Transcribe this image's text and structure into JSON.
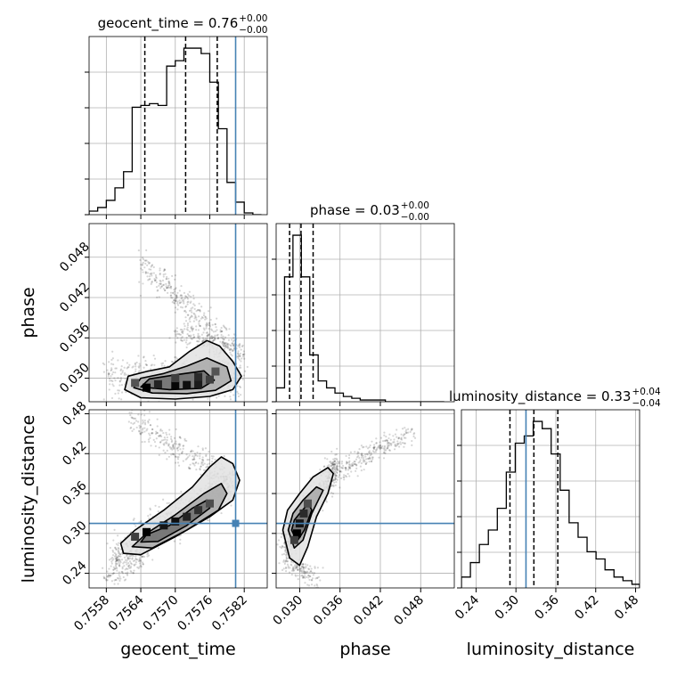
{
  "chart_data": {
    "type": "corner",
    "grid": true,
    "truth_color": "#4682b4",
    "parameters": [
      {
        "name": "geocent_time",
        "label": "geocent_time",
        "range": [
          0.7555,
          0.7586
        ],
        "ticks": [
          0.7558,
          0.7564,
          0.757,
          0.7576,
          0.7582
        ],
        "tick_labels": [
          "0.7558",
          "0.7564",
          "0.7570",
          "0.7576",
          "0.7582"
        ],
        "truth": 0.75805,
        "quantiles": [
          0.75647,
          0.75718,
          0.75773
        ],
        "title": {
          "main": "geocent_time = 0.76",
          "plus": "+0.00",
          "minus": "−0.00"
        },
        "histogram": {
          "edges": [
            0.7555,
            0.75565,
            0.7558,
            0.75595,
            0.7561,
            0.75625,
            0.7564,
            0.75655,
            0.7567,
            0.75685,
            0.757,
            0.75715,
            0.7573,
            0.75745,
            0.7576,
            0.75775,
            0.7579,
            0.75805,
            0.7582,
            0.75835,
            0.7585
          ],
          "counts": [
            2,
            4,
            8,
            15,
            24,
            60,
            61,
            62,
            61,
            83,
            86,
            93,
            93,
            90,
            74,
            48,
            18,
            7,
            1,
            0
          ]
        }
      },
      {
        "name": "phase",
        "label": "phase",
        "range": [
          0.0265,
          0.053
        ],
        "ticks": [
          0.03,
          0.036,
          0.042,
          0.048
        ],
        "tick_labels": [
          "0.030",
          "0.036",
          "0.042",
          "0.048"
        ],
        "truth": null,
        "quantiles": [
          0.0285,
          0.0302,
          0.032
        ],
        "title": {
          "main": "phase = 0.03",
          "plus": "+0.00",
          "minus": "−0.00"
        },
        "histogram": {
          "edges": [
            0.0265,
            0.02775,
            0.029,
            0.03025,
            0.0315,
            0.03275,
            0.034,
            0.03525,
            0.0365,
            0.03775,
            0.039,
            0.04025,
            0.0415,
            0.04275,
            0.044,
            0.04525,
            0.0465,
            0.04775,
            0.049,
            0.05025,
            0.0515
          ],
          "counts": [
            8,
            72,
            96,
            72,
            27,
            12,
            8,
            5,
            3,
            2,
            1,
            1,
            1,
            0,
            0,
            0,
            0,
            0,
            0,
            0
          ]
        }
      },
      {
        "name": "luminosity_distance",
        "label": "luminosity_distance",
        "range": [
          0.218,
          0.486
        ],
        "ticks": [
          0.24,
          0.3,
          0.36,
          0.42,
          0.48
        ],
        "tick_labels": [
          "0.24",
          "0.30",
          "0.36",
          "0.42",
          "0.48"
        ],
        "truth": 0.3151,
        "quantiles": [
          0.291,
          0.327,
          0.363
        ],
        "title": {
          "main": "luminosity_distance = 0.33",
          "plus": "+0.04",
          "minus": "−0.04"
        },
        "histogram": {
          "edges": [
            0.218,
            0.2315,
            0.245,
            0.2585,
            0.272,
            0.2855,
            0.299,
            0.3125,
            0.326,
            0.3395,
            0.353,
            0.3665,
            0.38,
            0.3935,
            0.407,
            0.4205,
            0.434,
            0.4475,
            0.461,
            0.4745,
            0.486
          ],
          "counts": [
            3,
            7,
            12,
            16,
            22,
            32,
            40,
            42,
            46,
            44,
            37,
            27,
            18,
            14,
            10,
            8,
            5,
            3,
            2,
            1
          ]
        }
      }
    ],
    "pairs": [
      {
        "x": "geocent_time",
        "y": "phase",
        "truth_x": 0.75805,
        "truth_y": null,
        "cloud": [
          {
            "kind": "band",
            "x0": 0.7558,
            "y0": 0.0305,
            "x1": 0.75815,
            "y1": 0.03,
            "spread": 0.0015,
            "count": 500
          },
          {
            "kind": "band",
            "x0": 0.7564,
            "y0": 0.047,
            "x1": 0.7582,
            "y1": 0.033,
            "spread": 0.0012,
            "count": 380
          },
          {
            "kind": "band",
            "x0": 0.757,
            "y0": 0.037,
            "x1": 0.7579,
            "y1": 0.0345,
            "spread": 0.0008,
            "count": 160
          }
        ],
        "contours": [
          [
            [
              0.75612,
              0.0283
            ],
            [
              0.7564,
              0.0271
            ],
            [
              0.757,
              0.0269
            ],
            [
              0.7576,
              0.0273
            ],
            [
              0.758,
              0.0283
            ],
            [
              0.75815,
              0.0303
            ],
            [
              0.758,
              0.0325
            ],
            [
              0.75777,
              0.0348
            ],
            [
              0.75755,
              0.0356
            ],
            [
              0.75725,
              0.034
            ],
            [
              0.7569,
              0.0317
            ],
            [
              0.7565,
              0.031
            ],
            [
              0.75618,
              0.0303
            ]
          ],
          [
            [
              0.75628,
              0.0286
            ],
            [
              0.7566,
              0.0278
            ],
            [
              0.7572,
              0.0277
            ],
            [
              0.7577,
              0.0282
            ],
            [
              0.75797,
              0.0296
            ],
            [
              0.7579,
              0.0317
            ],
            [
              0.75755,
              0.033
            ],
            [
              0.7572,
              0.0318
            ],
            [
              0.7568,
              0.0307
            ],
            [
              0.7564,
              0.03
            ]
          ],
          [
            [
              0.7564,
              0.0287
            ],
            [
              0.7569,
              0.0283
            ],
            [
              0.75745,
              0.0285
            ],
            [
              0.75768,
              0.0297
            ],
            [
              0.7575,
              0.0311
            ],
            [
              0.757,
              0.0305
            ],
            [
              0.75655,
              0.0299
            ]
          ]
        ],
        "cells": [
          [
            0.7565,
            0.0286,
            1.0
          ],
          [
            0.7567,
            0.0291,
            0.75
          ],
          [
            0.757,
            0.029,
            0.95
          ],
          [
            0.7572,
            0.029,
            0.9
          ],
          [
            0.7574,
            0.0291,
            0.8
          ],
          [
            0.7574,
            0.0302,
            0.7
          ],
          [
            0.757,
            0.03,
            0.55
          ],
          [
            0.7576,
            0.0298,
            0.55
          ],
          [
            0.7563,
            0.0293,
            0.4
          ],
          [
            0.7577,
            0.031,
            0.4
          ]
        ]
      },
      {
        "x": "geocent_time",
        "y": "luminosity_distance",
        "truth_x": 0.75805,
        "truth_y": 0.3151,
        "cloud": [
          {
            "kind": "band",
            "x0": 0.7559,
            "y0": 0.26,
            "x1": 0.758,
            "y1": 0.38,
            "spread": 0.015,
            "count": 700
          },
          {
            "kind": "band",
            "x0": 0.7562,
            "y0": 0.47,
            "x1": 0.758,
            "y1": 0.38,
            "spread": 0.012,
            "count": 300
          },
          {
            "kind": "band",
            "x0": 0.7558,
            "y0": 0.235,
            "x1": 0.7565,
            "y1": 0.27,
            "spread": 0.01,
            "count": 120
          }
        ],
        "contours": [
          [
            [
              0.7561,
              0.27
            ],
            [
              0.7564,
              0.268
            ],
            [
              0.757,
              0.295
            ],
            [
              0.7576,
              0.325
            ],
            [
              0.758,
              0.35
            ],
            [
              0.75812,
              0.38
            ],
            [
              0.758,
              0.405
            ],
            [
              0.7578,
              0.415
            ],
            [
              0.7576,
              0.4
            ],
            [
              0.7573,
              0.37
            ],
            [
              0.7568,
              0.335
            ],
            [
              0.7563,
              0.305
            ],
            [
              0.75605,
              0.285
            ]
          ],
          [
            [
              0.75625,
              0.28
            ],
            [
              0.7566,
              0.278
            ],
            [
              0.7572,
              0.305
            ],
            [
              0.75775,
              0.335
            ],
            [
              0.7579,
              0.36
            ],
            [
              0.7578,
              0.375
            ],
            [
              0.7575,
              0.36
            ],
            [
              0.757,
              0.328
            ],
            [
              0.7565,
              0.3
            ]
          ],
          [
            [
              0.7564,
              0.287
            ],
            [
              0.7567,
              0.288
            ],
            [
              0.7572,
              0.312
            ],
            [
              0.7576,
              0.338
            ],
            [
              0.75755,
              0.35
            ],
            [
              0.7573,
              0.338
            ],
            [
              0.7569,
              0.312
            ],
            [
              0.7565,
              0.298
            ]
          ]
        ],
        "cells": [
          [
            0.7565,
            0.302,
            1.0
          ],
          [
            0.7568,
            0.312,
            0.85
          ],
          [
            0.757,
            0.318,
            0.9
          ],
          [
            0.7572,
            0.325,
            0.75
          ],
          [
            0.7574,
            0.335,
            0.65
          ],
          [
            0.7563,
            0.295,
            0.55
          ],
          [
            0.7576,
            0.345,
            0.45
          ]
        ]
      },
      {
        "x": "phase",
        "y": "luminosity_distance",
        "truth_x": null,
        "truth_y": 0.3151,
        "cloud": [
          {
            "kind": "band",
            "x0": 0.0275,
            "y0": 0.28,
            "x1": 0.0355,
            "y1": 0.4,
            "spread": 0.012,
            "count": 650
          },
          {
            "kind": "band",
            "x0": 0.035,
            "y0": 0.39,
            "x1": 0.047,
            "y1": 0.455,
            "spread": 0.008,
            "count": 260
          },
          {
            "kind": "band",
            "x0": 0.0275,
            "y0": 0.26,
            "x1": 0.033,
            "y1": 0.23,
            "spread": 0.008,
            "count": 150
          }
        ],
        "contours": [
          [
            [
              0.0275,
              0.305
            ],
            [
              0.0285,
              0.263
            ],
            [
              0.03,
              0.252
            ],
            [
              0.0312,
              0.28
            ],
            [
              0.0325,
              0.325
            ],
            [
              0.0342,
              0.36
            ],
            [
              0.035,
              0.39
            ],
            [
              0.0342,
              0.399
            ],
            [
              0.032,
              0.385
            ],
            [
              0.03,
              0.36
            ],
            [
              0.0282,
              0.335
            ]
          ],
          [
            [
              0.0283,
              0.305
            ],
            [
              0.0292,
              0.278
            ],
            [
              0.0305,
              0.29
            ],
            [
              0.0318,
              0.33
            ],
            [
              0.0335,
              0.365
            ],
            [
              0.0325,
              0.37
            ],
            [
              0.0305,
              0.35
            ],
            [
              0.029,
              0.33
            ]
          ],
          [
            [
              0.0288,
              0.305
            ],
            [
              0.0296,
              0.288
            ],
            [
              0.0307,
              0.305
            ],
            [
              0.0318,
              0.335
            ],
            [
              0.0313,
              0.345
            ],
            [
              0.03,
              0.33
            ],
            [
              0.0292,
              0.32
            ]
          ]
        ],
        "cells": [
          [
            0.0296,
            0.3,
            1.0
          ],
          [
            0.03,
            0.315,
            0.85
          ],
          [
            0.0306,
            0.33,
            0.7
          ],
          [
            0.0292,
            0.29,
            0.55
          ],
          [
            0.0312,
            0.345,
            0.45
          ]
        ]
      }
    ]
  }
}
